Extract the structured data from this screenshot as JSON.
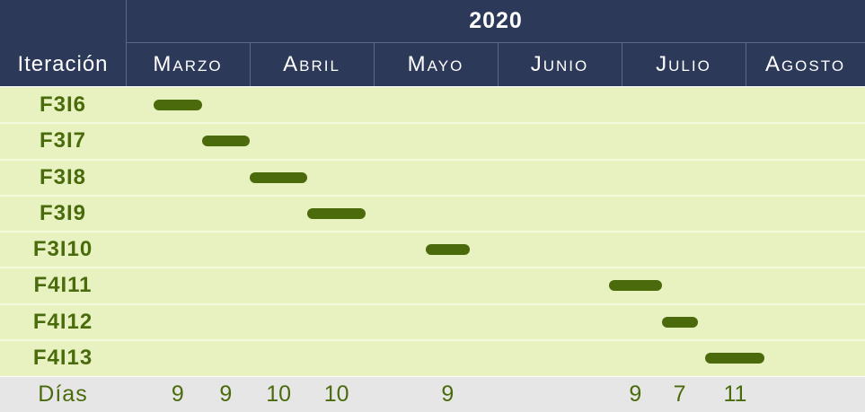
{
  "chart_data": {
    "type": "gantt",
    "year": "2020",
    "row_header": "Iteración",
    "footer_label": "Días",
    "months": [
      "Marzo",
      "Abril",
      "Mayo",
      "Junio",
      "Julio",
      "Agosto"
    ],
    "rows": [
      {
        "label": "F3I6",
        "start": "2020-03-08",
        "end": "2020-03-20",
        "days": "9"
      },
      {
        "label": "F3I7",
        "start": "2020-03-20",
        "end": "2020-04-01",
        "days": "9"
      },
      {
        "label": "F3I8",
        "start": "2020-04-01",
        "end": "2020-04-15",
        "days": "10"
      },
      {
        "label": "F3I9",
        "start": "2020-04-15",
        "end": "2020-04-29",
        "days": "10"
      },
      {
        "label": "F3I10",
        "start": "2020-05-14",
        "end": "2020-05-25",
        "days": "9"
      },
      {
        "label": "F4I11",
        "start": "2020-06-28",
        "end": "2020-07-11",
        "days": "9"
      },
      {
        "label": "F4I12",
        "start": "2020-07-11",
        "end": "2020-07-20",
        "days": "7"
      },
      {
        "label": "F4I13",
        "start": "2020-07-22",
        "end": "2020-08-06",
        "days": "11"
      }
    ],
    "bar_color": "#4b6a0c",
    "text_color": "#4a6b0c",
    "header_color": "#2d3959",
    "body_color": "#e7f2c0",
    "footer_color": "#e6e6e6"
  }
}
